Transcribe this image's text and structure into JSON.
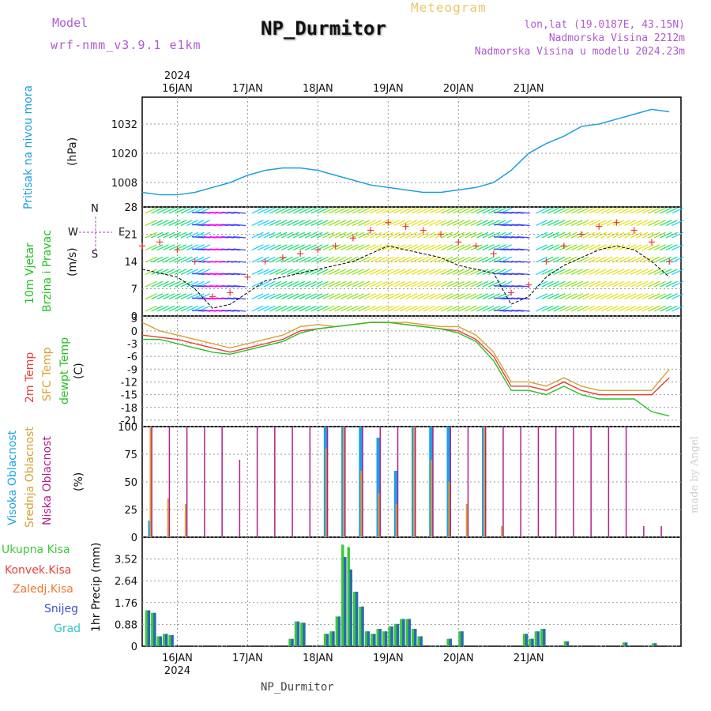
{
  "header": {
    "model_label": "Model",
    "model_name": "wrf-nmm_v3.9.1 e1km",
    "station": "NP_Durmitor",
    "title": "Meteogram",
    "lonlat": "lon,lat (19.0187E, 43.15N)",
    "altitude": "Nadmorska Visina 2212m",
    "altitude_model": "Nadmorska Visina u modelu 2024.23m"
  },
  "footer": {
    "station": "NP_Durmitor",
    "signature": "made by Angel"
  },
  "colors": {
    "pressure": "#1e9ee0",
    "temp2m": "#e83c3c",
    "sfc_temp": "#d9a030",
    "dewpoint": "#28c028",
    "wind_black": "#000000",
    "gust": "#e83c3c",
    "high_cloud": "#1ea0e8",
    "mid_cloud": "#d9a030",
    "low_cloud": "#b0208a",
    "total_precip": "#3cc83c",
    "convective": "#e84040",
    "freezing": "#f07830",
    "snow": "#4050d0",
    "graupel": "#30c8c8"
  },
  "chart_data": [
    {
      "type": "line",
      "panel": "pressure",
      "top_year": "2024",
      "top_dates": [
        "16JAN",
        "17JAN",
        "18JAN",
        "19JAN",
        "20JAN",
        "21JAN"
      ],
      "ylabel": [
        "Pritisak na nivou mora",
        "(hPa)"
      ],
      "yticks": [
        "1008",
        "1020",
        "1032"
      ],
      "ylim": [
        998,
        1043
      ],
      "x": [
        0,
        6,
        12,
        18,
        24,
        30,
        36,
        42,
        48,
        54,
        60,
        66,
        72,
        78,
        84,
        90,
        96,
        102,
        108,
        114,
        120,
        126,
        132,
        138,
        144,
        150
      ],
      "values": [
        1004,
        1003,
        1003,
        1004,
        1006,
        1008,
        1011,
        1013,
        1014,
        1014,
        1013,
        1011,
        1009,
        1007,
        1006,
        1005,
        1004,
        1004,
        1005,
        1006,
        1008,
        1013,
        1020,
        1024,
        1027,
        1031
      ],
      "x_extra": [
        156,
        162,
        168,
        174,
        180
      ],
      "values_extra": [
        1032,
        1034,
        1036,
        1038,
        1037
      ]
    },
    {
      "type": "line",
      "panel": "wind",
      "ylabel": [
        "10m Vjetar",
        "Brzina i Pravac",
        "(m/s)"
      ],
      "compass": [
        "N",
        "W",
        "E",
        "S"
      ],
      "yticks": [
        "0",
        "7",
        "14",
        "21",
        "28"
      ],
      "ylim": [
        0,
        28
      ],
      "x": [
        0,
        6,
        12,
        18,
        24,
        30,
        36,
        42,
        48,
        54,
        60,
        66,
        72,
        78,
        84,
        90,
        96,
        102,
        108,
        114,
        120,
        126,
        132,
        138,
        144,
        150,
        156,
        162,
        168,
        174,
        180
      ],
      "speed": [
        12,
        11,
        10,
        7,
        2,
        3,
        6,
        9,
        10,
        11,
        12,
        13,
        14,
        16,
        18,
        17,
        16,
        15,
        13,
        12,
        11,
        3,
        5,
        10,
        13,
        15,
        17,
        18,
        17,
        14,
        10
      ],
      "gust": [
        18,
        19,
        17,
        14,
        5,
        6,
        10,
        14,
        15,
        16,
        17,
        18,
        20,
        22,
        24,
        23,
        22,
        21,
        19,
        18,
        16,
        6,
        8,
        14,
        18,
        21,
        23,
        24,
        22,
        19,
        14
      ]
    },
    {
      "type": "line",
      "panel": "temperature",
      "ylabel": [
        "2m Temp",
        "SFC Temp",
        "dewpt Temp",
        "(C)"
      ],
      "yticks": [
        "3",
        "0",
        "-3",
        "-6",
        "-9",
        "-12",
        "-15",
        "-18",
        "-21"
      ],
      "ylim": [
        -22.5,
        3.5
      ],
      "x": [
        0,
        6,
        12,
        18,
        24,
        30,
        36,
        42,
        48,
        54,
        60,
        66,
        72,
        78,
        84,
        90,
        96,
        102,
        108,
        114,
        120,
        126,
        132,
        138,
        144,
        150,
        156,
        162,
        168,
        174,
        180
      ],
      "series": [
        {
          "name": "2m Temp",
          "values": [
            -1,
            -1.5,
            -2,
            -3,
            -4,
            -5,
            -4,
            -3,
            -2,
            0,
            0.5,
            1,
            1.5,
            2,
            2,
            1.5,
            1,
            0.5,
            0,
            -2,
            -6,
            -13,
            -13,
            -14,
            -12,
            -14,
            -15,
            -15,
            -15,
            -15,
            -11
          ]
        },
        {
          "name": "SFC Temp",
          "values": [
            2,
            0,
            -1,
            -2,
            -3,
            -4,
            -3,
            -2,
            -1,
            1,
            1.5,
            1,
            1.5,
            2,
            2,
            2,
            1.5,
            1,
            1,
            -1,
            -5,
            -12,
            -12,
            -13,
            -11,
            -13,
            -14,
            -14,
            -14,
            -14,
            -9
          ]
        },
        {
          "name": "dewpt Temp",
          "values": [
            -2,
            -2,
            -3,
            -4,
            -5,
            -5.5,
            -4.5,
            -3.5,
            -2.5,
            -0.5,
            0.5,
            1,
            1.5,
            2,
            2,
            1.5,
            1,
            0.5,
            -0.5,
            -2.5,
            -7,
            -14,
            -14,
            -15,
            -13,
            -15,
            -16,
            -16,
            -16,
            -19,
            -20
          ]
        }
      ]
    },
    {
      "type": "bar",
      "panel": "clouds",
      "ylabel": [
        "Visoka Oblacnost",
        "Srednja Oblacnost",
        "Niska Oblacnost",
        "(%)"
      ],
      "yticks": [
        "0",
        "25",
        "50",
        "75",
        "100"
      ],
      "ylim": [
        0,
        100
      ],
      "x": [
        2,
        8,
        14,
        20,
        26,
        32,
        38,
        44,
        50,
        56,
        62,
        68,
        74,
        80,
        86,
        92,
        98,
        104,
        110,
        116,
        122,
        128,
        134,
        140,
        146,
        152,
        158,
        164,
        170,
        176
      ],
      "series": [
        {
          "name": "Visoka Oblacnost",
          "values": [
            15,
            0,
            0,
            0,
            0,
            0,
            0,
            0,
            0,
            0,
            100,
            100,
            100,
            90,
            60,
            100,
            100,
            100,
            0,
            100,
            0,
            0,
            0,
            0,
            0,
            0,
            0,
            0,
            0,
            0
          ]
        },
        {
          "name": "Srednja Oblacnost",
          "values": [
            100,
            35,
            30,
            0,
            0,
            0,
            0,
            0,
            0,
            0,
            80,
            100,
            60,
            40,
            30,
            100,
            70,
            50,
            30,
            100,
            10,
            0,
            0,
            0,
            0,
            0,
            0,
            0,
            0,
            0
          ]
        },
        {
          "name": "Niska Oblacnost",
          "values": [
            100,
            100,
            100,
            100,
            100,
            70,
            100,
            100,
            100,
            100,
            100,
            100,
            100,
            100,
            100,
            100,
            100,
            100,
            100,
            100,
            100,
            100,
            100,
            100,
            100,
            100,
            100,
            100,
            10,
            10
          ]
        }
      ]
    },
    {
      "type": "bar",
      "panel": "precipitation",
      "ylabel": [
        "1hr Precip (mm)"
      ],
      "legend": [
        "Ukupna Kisa",
        "Konvek.Kisa",
        "Zaledj.Kisa",
        "Snijeg",
        "Grad"
      ],
      "yticks": [
        "0",
        "0.88",
        "1.76",
        "2.64",
        "3.52"
      ],
      "ylim": [
        0,
        4.4
      ],
      "bottom_dates": [
        "16JAN",
        "17JAN",
        "18JAN",
        "19JAN",
        "20JAN",
        "21JAN"
      ],
      "bottom_year": "2024",
      "x": [
        1,
        3,
        5,
        7,
        9,
        50,
        52,
        54,
        62,
        64,
        66,
        68,
        70,
        72,
        74,
        76,
        78,
        80,
        82,
        84,
        86,
        88,
        90,
        92,
        94,
        104,
        108,
        130,
        132,
        134,
        136,
        144,
        164,
        174
      ],
      "series": [
        {
          "name": "Ukupna Kisa",
          "values": [
            1.45,
            1.35,
            0.4,
            0.5,
            0.45,
            0.3,
            1.0,
            0.95,
            0.5,
            0.6,
            1.2,
            4.1,
            4.0,
            2.2,
            1.6,
            0.6,
            0.5,
            0.7,
            0.6,
            0.8,
            0.9,
            1.1,
            1.1,
            0.7,
            0.4,
            0.3,
            0.6,
            0.5,
            0.3,
            0.6,
            0.7,
            0.2,
            0.15,
            0.12
          ]
        },
        {
          "name": "Snijeg",
          "values": [
            1.45,
            1.35,
            0.4,
            0.5,
            0.45,
            0.3,
            1.0,
            0.95,
            0.5,
            0.6,
            1.2,
            3.6,
            3.1,
            2.2,
            1.6,
            0.6,
            0.5,
            0.7,
            0.6,
            0.8,
            0.9,
            1.1,
            1.1,
            0.7,
            0.4,
            0.3,
            0.6,
            0.5,
            0.3,
            0.6,
            0.7,
            0.2,
            0.15,
            0.12
          ]
        }
      ]
    }
  ]
}
